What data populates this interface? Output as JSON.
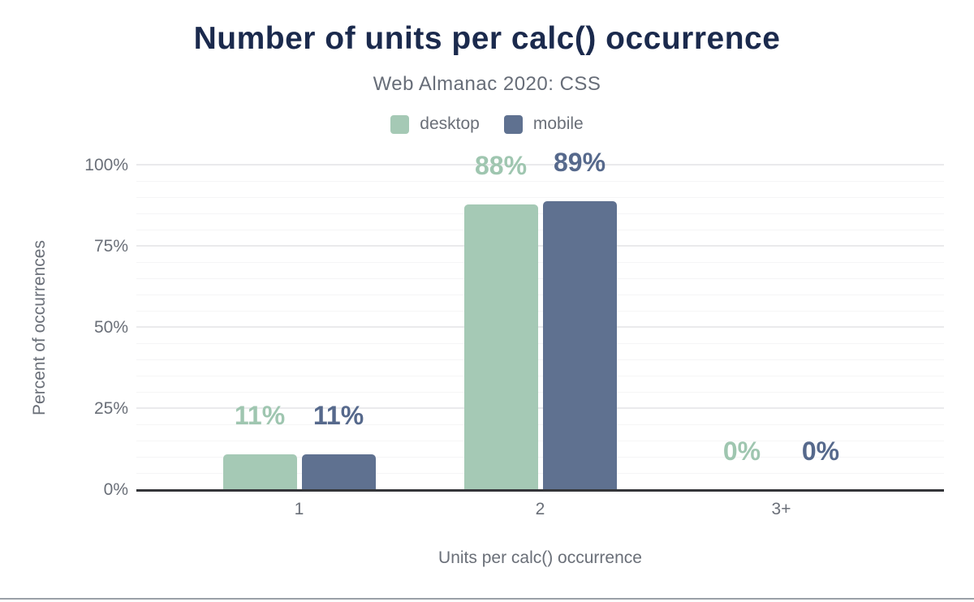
{
  "chart_data": {
    "type": "bar",
    "title": "Number of units per calc() occurrence",
    "subtitle": "Web Almanac 2020: CSS",
    "categories": [
      "1",
      "2",
      "3+"
    ],
    "series": [
      {
        "name": "desktop",
        "values": [
          11,
          88,
          0
        ],
        "labels": [
          "11%",
          "88%",
          "0%"
        ]
      },
      {
        "name": "mobile",
        "values": [
          11,
          89,
          0
        ],
        "labels": [
          "11%",
          "89%",
          "0%"
        ]
      }
    ],
    "xlabel": "Units per calc() occurrence",
    "ylabel": "Percent of occurrences",
    "ylim": [
      0,
      100
    ],
    "yticks": [
      0,
      25,
      50,
      75,
      100
    ],
    "ytick_labels": [
      "0%",
      "25%",
      "50%",
      "75%",
      "100%"
    ],
    "grid": "horizontal, minor every 5%, major every 25%",
    "legend_position": "top-center"
  },
  "colors": {
    "background": "#ffffff",
    "title": "#1b2a4d",
    "subtitle": "#676d78",
    "axis_text": "#6a6f78",
    "axis_line": "#343539",
    "grid_major": "#eaeaec",
    "grid_minor": "#f5f5f6",
    "bottom_rule": "#9aa0a7",
    "desktop": "#a5c9b5",
    "mobile": "#5f7190",
    "desktop_label": "#9fc6b0",
    "mobile_label": "#56698c"
  }
}
